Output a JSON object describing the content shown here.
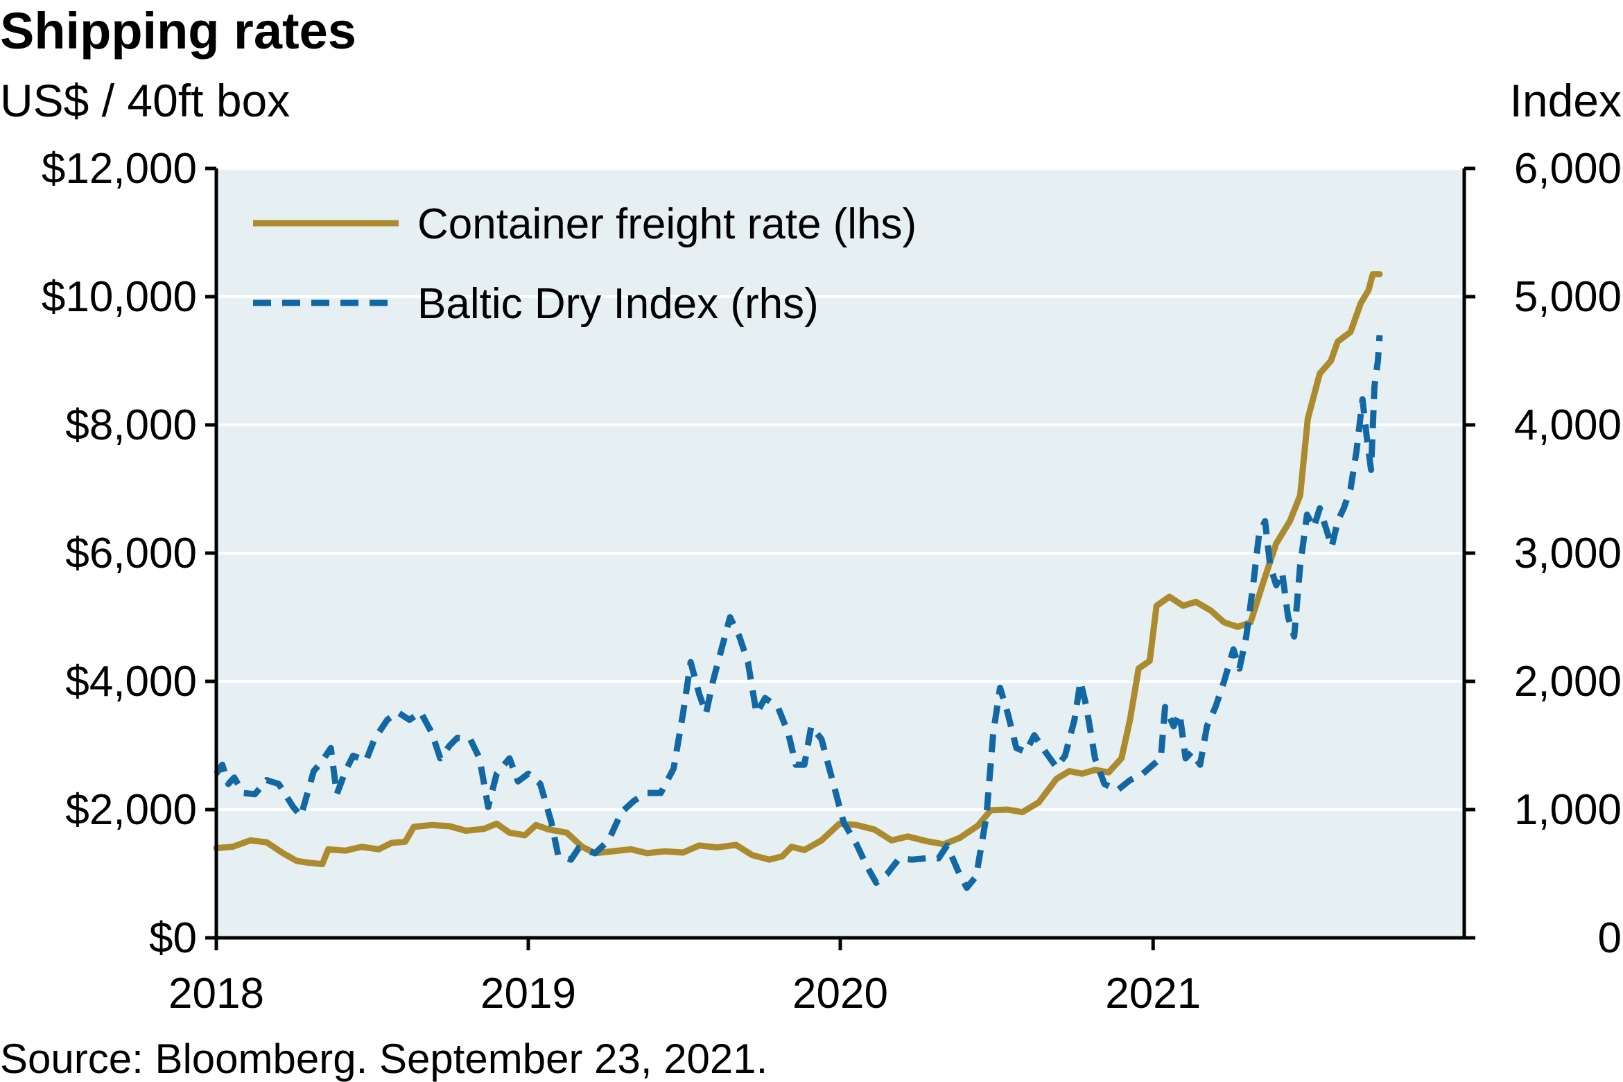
{
  "title": "Shipping rates",
  "left_axis_unit": "US$ / 40ft box",
  "right_axis_unit": "Index",
  "source": "Source: Bloomberg. September 23, 2021.",
  "colors": {
    "plot_background": "#e6f0f3",
    "gridline": "#ffffff",
    "axis": "#000000",
    "container_series": "#ac8a2e",
    "baltic_series": "#1368a4"
  },
  "chart_data": {
    "type": "line",
    "title": "Shipping rates",
    "xlabel": "",
    "ylabel": "US$ / 40ft box",
    "y2label": "Index",
    "xlim": [
      "2018-01-01",
      "2021-12-31"
    ],
    "ylim": [
      0,
      12000
    ],
    "y2lim": [
      0,
      6000
    ],
    "grid": true,
    "legend_position": "top-left",
    "x_tick_labels": [
      "2018",
      "2019",
      "2020",
      "2021"
    ],
    "x_tick_dates": [
      "2018-01-01",
      "2019-01-01",
      "2020-01-01",
      "2021-01-01"
    ],
    "y_tick_labels": [
      "$0",
      "$2,000",
      "$4,000",
      "$6,000",
      "$8,000",
      "$10,000",
      "$12,000"
    ],
    "y_tick_values": [
      0,
      2000,
      4000,
      6000,
      8000,
      10000,
      12000
    ],
    "y2_tick_labels": [
      "0",
      "1,000",
      "2,000",
      "3,000",
      "4,000",
      "5,000",
      "6,000"
    ],
    "y2_tick_values": [
      0,
      1000,
      2000,
      3000,
      4000,
      5000,
      6000
    ],
    "series": [
      {
        "name": "Container freight rate (lhs)",
        "axis": "left",
        "style": "solid",
        "points": [
          [
            "2018-01-01",
            1400
          ],
          [
            "2018-01-20",
            1420
          ],
          [
            "2018-02-10",
            1520
          ],
          [
            "2018-03-01",
            1490
          ],
          [
            "2018-03-20",
            1320
          ],
          [
            "2018-04-05",
            1200
          ],
          [
            "2018-04-20",
            1170
          ],
          [
            "2018-05-05",
            1150
          ],
          [
            "2018-05-12",
            1380
          ],
          [
            "2018-06-01",
            1360
          ],
          [
            "2018-06-20",
            1420
          ],
          [
            "2018-07-10",
            1380
          ],
          [
            "2018-07-25",
            1480
          ],
          [
            "2018-08-10",
            1500
          ],
          [
            "2018-08-20",
            1730
          ],
          [
            "2018-09-10",
            1760
          ],
          [
            "2018-10-01",
            1740
          ],
          [
            "2018-10-20",
            1670
          ],
          [
            "2018-11-10",
            1700
          ],
          [
            "2018-11-25",
            1780
          ],
          [
            "2018-12-10",
            1640
          ],
          [
            "2018-12-28",
            1600
          ],
          [
            "2019-01-10",
            1760
          ],
          [
            "2019-01-25",
            1690
          ],
          [
            "2019-02-15",
            1640
          ],
          [
            "2019-03-05",
            1420
          ],
          [
            "2019-03-20",
            1320
          ],
          [
            "2019-04-10",
            1350
          ],
          [
            "2019-05-01",
            1380
          ],
          [
            "2019-05-20",
            1320
          ],
          [
            "2019-06-10",
            1350
          ],
          [
            "2019-07-01",
            1330
          ],
          [
            "2019-07-20",
            1440
          ],
          [
            "2019-08-10",
            1410
          ],
          [
            "2019-09-01",
            1450
          ],
          [
            "2019-09-20",
            1290
          ],
          [
            "2019-10-10",
            1220
          ],
          [
            "2019-10-25",
            1270
          ],
          [
            "2019-11-05",
            1420
          ],
          [
            "2019-11-20",
            1370
          ],
          [
            "2019-12-10",
            1520
          ],
          [
            "2019-12-31",
            1780
          ],
          [
            "2020-01-20",
            1760
          ],
          [
            "2020-02-10",
            1690
          ],
          [
            "2020-03-01",
            1520
          ],
          [
            "2020-03-20",
            1580
          ],
          [
            "2020-04-10",
            1510
          ],
          [
            "2020-05-01",
            1460
          ],
          [
            "2020-05-20",
            1560
          ],
          [
            "2020-06-10",
            1750
          ],
          [
            "2020-06-25",
            1990
          ],
          [
            "2020-07-15",
            2000
          ],
          [
            "2020-08-01",
            1960
          ],
          [
            "2020-08-20",
            2110
          ],
          [
            "2020-09-10",
            2480
          ],
          [
            "2020-09-25",
            2600
          ],
          [
            "2020-10-10",
            2560
          ],
          [
            "2020-10-25",
            2620
          ],
          [
            "2020-11-10",
            2580
          ],
          [
            "2020-11-25",
            2800
          ],
          [
            "2020-12-05",
            3400
          ],
          [
            "2020-12-15",
            4200
          ],
          [
            "2020-12-28",
            4320
          ],
          [
            "2021-01-05",
            5180
          ],
          [
            "2021-01-20",
            5320
          ],
          [
            "2021-02-05",
            5180
          ],
          [
            "2021-02-20",
            5240
          ],
          [
            "2021-03-10",
            5100
          ],
          [
            "2021-03-25",
            4920
          ],
          [
            "2021-04-10",
            4850
          ],
          [
            "2021-04-25",
            4920
          ],
          [
            "2021-05-10",
            5550
          ],
          [
            "2021-05-25",
            6150
          ],
          [
            "2021-06-10",
            6500
          ],
          [
            "2021-06-22",
            6900
          ],
          [
            "2021-07-01",
            8100
          ],
          [
            "2021-07-15",
            8800
          ],
          [
            "2021-07-28",
            9000
          ],
          [
            "2021-08-05",
            9300
          ],
          [
            "2021-08-20",
            9450
          ],
          [
            "2021-09-01",
            9900
          ],
          [
            "2021-09-10",
            10100
          ],
          [
            "2021-09-15",
            10350
          ],
          [
            "2021-09-23",
            10350
          ]
        ]
      },
      {
        "name": "Baltic Dry Index (rhs)",
        "axis": "right",
        "style": "dashed",
        "points": [
          [
            "2018-01-01",
            1280
          ],
          [
            "2018-01-08",
            1350
          ],
          [
            "2018-01-15",
            1200
          ],
          [
            "2018-01-22",
            1250
          ],
          [
            "2018-02-01",
            1130
          ],
          [
            "2018-02-15",
            1120
          ],
          [
            "2018-03-01",
            1230
          ],
          [
            "2018-03-15",
            1200
          ],
          [
            "2018-04-01",
            1020
          ],
          [
            "2018-04-10",
            950
          ],
          [
            "2018-04-25",
            1300
          ],
          [
            "2018-05-05",
            1380
          ],
          [
            "2018-05-15",
            1480
          ],
          [
            "2018-05-22",
            1120
          ],
          [
            "2018-06-01",
            1300
          ],
          [
            "2018-06-10",
            1420
          ],
          [
            "2018-06-25",
            1380
          ],
          [
            "2018-07-05",
            1550
          ],
          [
            "2018-07-20",
            1700
          ],
          [
            "2018-08-01",
            1760
          ],
          [
            "2018-08-15",
            1700
          ],
          [
            "2018-08-28",
            1760
          ],
          [
            "2018-09-10",
            1600
          ],
          [
            "2018-09-20",
            1400
          ],
          [
            "2018-10-01",
            1500
          ],
          [
            "2018-10-10",
            1560
          ],
          [
            "2018-10-25",
            1550
          ],
          [
            "2018-11-05",
            1400
          ],
          [
            "2018-11-15",
            1020
          ],
          [
            "2018-11-25",
            1280
          ],
          [
            "2018-12-10",
            1400
          ],
          [
            "2018-12-20",
            1220
          ],
          [
            "2019-01-01",
            1280
          ],
          [
            "2019-01-15",
            1200
          ],
          [
            "2019-01-28",
            900
          ],
          [
            "2019-02-05",
            640
          ],
          [
            "2019-02-20",
            610
          ],
          [
            "2019-03-01",
            700
          ],
          [
            "2019-03-20",
            660
          ],
          [
            "2019-04-05",
            760
          ],
          [
            "2019-04-20",
            980
          ],
          [
            "2019-05-05",
            1070
          ],
          [
            "2019-05-20",
            1130
          ],
          [
            "2019-06-05",
            1130
          ],
          [
            "2019-06-20",
            1320
          ],
          [
            "2019-07-01",
            1750
          ],
          [
            "2019-07-10",
            2150
          ],
          [
            "2019-07-20",
            1900
          ],
          [
            "2019-07-28",
            1750
          ],
          [
            "2019-08-05",
            2000
          ],
          [
            "2019-08-15",
            2250
          ],
          [
            "2019-08-25",
            2500
          ],
          [
            "2019-09-05",
            2350
          ],
          [
            "2019-09-15",
            2150
          ],
          [
            "2019-09-25",
            1750
          ],
          [
            "2019-10-05",
            1870
          ],
          [
            "2019-10-20",
            1800
          ],
          [
            "2019-11-01",
            1600
          ],
          [
            "2019-11-10",
            1350
          ],
          [
            "2019-11-20",
            1350
          ],
          [
            "2019-11-28",
            1650
          ],
          [
            "2019-12-10",
            1550
          ],
          [
            "2019-12-20",
            1300
          ],
          [
            "2020-01-05",
            900
          ],
          [
            "2020-01-20",
            730
          ],
          [
            "2020-02-01",
            560
          ],
          [
            "2020-02-12",
            430
          ],
          [
            "2020-02-25",
            500
          ],
          [
            "2020-03-10",
            620
          ],
          [
            "2020-03-25",
            610
          ],
          [
            "2020-04-10",
            620
          ],
          [
            "2020-04-25",
            620
          ],
          [
            "2020-05-05",
            720
          ],
          [
            "2020-05-18",
            520
          ],
          [
            "2020-05-28",
            390
          ],
          [
            "2020-06-08",
            480
          ],
          [
            "2020-06-20",
            950
          ],
          [
            "2020-06-28",
            1600
          ],
          [
            "2020-07-06",
            1950
          ],
          [
            "2020-07-15",
            1750
          ],
          [
            "2020-07-25",
            1480
          ],
          [
            "2020-08-05",
            1450
          ],
          [
            "2020-08-15",
            1580
          ],
          [
            "2020-08-28",
            1450
          ],
          [
            "2020-09-10",
            1330
          ],
          [
            "2020-09-20",
            1420
          ],
          [
            "2020-10-01",
            1700
          ],
          [
            "2020-10-08",
            2000
          ],
          [
            "2020-10-15",
            1800
          ],
          [
            "2020-10-25",
            1400
          ],
          [
            "2020-11-05",
            1200
          ],
          [
            "2020-11-20",
            1150
          ],
          [
            "2020-12-05",
            1230
          ],
          [
            "2020-12-20",
            1280
          ],
          [
            "2021-01-01",
            1350
          ],
          [
            "2021-01-10",
            1400
          ],
          [
            "2021-01-15",
            1800
          ],
          [
            "2021-01-25",
            1650
          ],
          [
            "2021-02-01",
            1750
          ],
          [
            "2021-02-08",
            1400
          ],
          [
            "2021-02-15",
            1450
          ],
          [
            "2021-02-25",
            1350
          ],
          [
            "2021-03-05",
            1650
          ],
          [
            "2021-03-15",
            1800
          ],
          [
            "2021-03-25",
            2000
          ],
          [
            "2021-04-05",
            2250
          ],
          [
            "2021-04-12",
            2100
          ],
          [
            "2021-04-20",
            2350
          ],
          [
            "2021-04-28",
            2750
          ],
          [
            "2021-05-05",
            3150
          ],
          [
            "2021-05-12",
            3250
          ],
          [
            "2021-05-18",
            2900
          ],
          [
            "2021-05-25",
            2750
          ],
          [
            "2021-06-01",
            2850
          ],
          [
            "2021-06-08",
            2500
          ],
          [
            "2021-06-15",
            2350
          ],
          [
            "2021-06-22",
            2900
          ],
          [
            "2021-06-30",
            3300
          ],
          [
            "2021-07-08",
            3200
          ],
          [
            "2021-07-15",
            3350
          ],
          [
            "2021-07-22",
            3200
          ],
          [
            "2021-07-29",
            3050
          ],
          [
            "2021-08-05",
            3250
          ],
          [
            "2021-08-12",
            3350
          ],
          [
            "2021-08-20",
            3500
          ],
          [
            "2021-08-27",
            3800
          ],
          [
            "2021-09-03",
            4200
          ],
          [
            "2021-09-08",
            3900
          ],
          [
            "2021-09-13",
            3650
          ],
          [
            "2021-09-17",
            4300
          ],
          [
            "2021-09-21",
            4500
          ],
          [
            "2021-09-23",
            4700
          ]
        ]
      }
    ]
  }
}
